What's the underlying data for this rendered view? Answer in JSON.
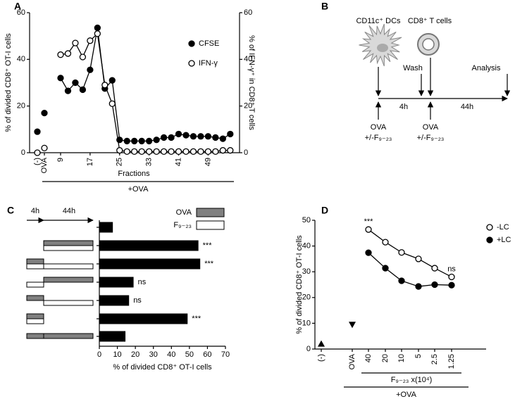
{
  "chart_data": [
    {
      "type": "line",
      "panel": "A",
      "ylabel": "% of divided CD8⁺ OT-I cells",
      "y2label": "% of IFN-γ⁺ in CD8⁺ T cells",
      "xlabel": "Fractions",
      "group_label": "+OVA",
      "categories": [
        "(-)",
        "OVA",
        "9",
        null,
        null,
        null,
        "17",
        null,
        null,
        null,
        "25",
        null,
        null,
        null,
        "33",
        null,
        null,
        null,
        "41",
        null,
        null,
        null,
        "49",
        null,
        null,
        null
      ],
      "series": [
        {
          "name": "CFSE",
          "color": "#000000",
          "marker": "filled",
          "values": [
            9,
            17,
            32,
            26.5,
            30,
            27,
            35.5,
            53.5,
            27.5,
            31,
            5.5,
            5,
            5,
            5,
            5,
            5.5,
            6.5,
            6.5,
            8,
            7.5,
            7,
            7,
            7,
            6.5,
            6,
            8
          ]
        },
        {
          "name": "IFN-γ",
          "color": "#000000",
          "marker": "open",
          "axis": "y2",
          "values": [
            0,
            2,
            42,
            42.5,
            47,
            41,
            48,
            51,
            29,
            21,
            1,
            0.5,
            0.5,
            0.5,
            0.5,
            0.5,
            0.5,
            0.5,
            0.5,
            0.5,
            0.5,
            0.5,
            0.5,
            0.5,
            1,
            1
          ]
        }
      ],
      "ylim": [
        0,
        60
      ],
      "yticks": [
        0,
        20,
        40,
        60
      ],
      "y2lim": [
        0,
        60
      ],
      "y2ticks": [
        0,
        20,
        40,
        60
      ]
    },
    {
      "type": "barh",
      "panel": "C",
      "xlabel": "% of divided CD8⁺ OT-I cells",
      "timeline_labels": [
        "4h",
        "44h"
      ],
      "legend_keys": [
        {
          "label": "OVA",
          "color": "#808080"
        },
        {
          "label": "F₉₋₂₃",
          "color": "#ffffff"
        }
      ],
      "values": [
        7.5,
        55,
        56,
        19,
        16.5,
        49,
        14.5
      ],
      "color": "#000000",
      "annotations": [
        null,
        "***",
        "***",
        "ns",
        "ns",
        "***",
        null
      ],
      "xlim": [
        0,
        70
      ],
      "xticks": [
        0,
        10,
        20,
        30,
        40,
        50,
        60,
        70
      ]
    },
    {
      "type": "line",
      "panel": "D",
      "ylabel": "% of divided CD8⁺ OT-I cells",
      "xlabel": "F₉₋₂₃ x(10⁴)",
      "group_label": "+OVA",
      "categories": [
        "(-)",
        "OVA",
        "40",
        "20",
        "10",
        "5",
        "2.5",
        "1.25"
      ],
      "series": [
        {
          "name": "-LC",
          "color": "#000000",
          "marker": "open",
          "values": [
            null,
            null,
            46.4,
            41.5,
            37.5,
            35,
            31.4,
            28
          ]
        },
        {
          "name": "+LC",
          "color": "#000000",
          "marker": "filled",
          "values": [
            null,
            null,
            37.4,
            31.4,
            26.5,
            24.3,
            25,
            24.8
          ]
        },
        {
          "color": "#000000",
          "markers": [
            "triangle-up",
            "triangle-down",
            null,
            null,
            null,
            null,
            null,
            null
          ],
          "values": [
            2,
            9.5,
            null,
            null,
            null,
            null,
            null,
            null
          ]
        }
      ],
      "annotations": [
        null,
        null,
        "***",
        null,
        null,
        null,
        null,
        "ns"
      ],
      "ylim": [
        0,
        50
      ],
      "yticks": [
        0,
        10,
        20,
        30,
        40,
        50
      ]
    }
  ],
  "diagram": {
    "panel": "B",
    "cell1": "CD11c⁺ DCs",
    "cell2": "CD8⁺ T cells",
    "wash": "Wash",
    "analysis": "Analysis",
    "interval1": "4h",
    "interval2": "44h",
    "treatments": [
      {
        "agent": "OVA",
        "modifier": "+/-F₉₋₂₃"
      },
      {
        "agent": "OVA",
        "modifier": "+/-F₉₋₂₃"
      }
    ]
  }
}
